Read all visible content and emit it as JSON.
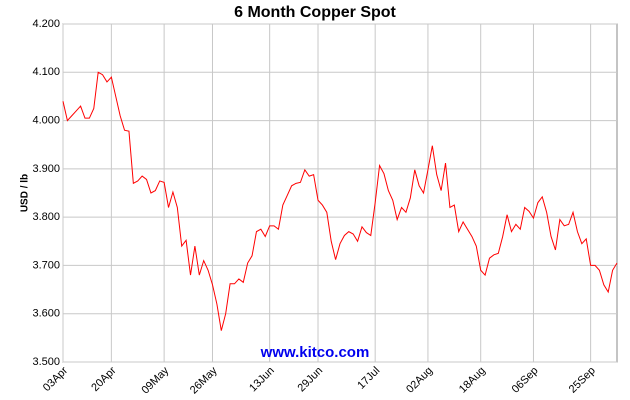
{
  "chart_data": {
    "type": "line",
    "title": "6 Month Copper Spot",
    "y_label": "USD / lb",
    "watermark": "www.kitco.com",
    "categories": [
      "03Apr",
      null,
      null,
      null,
      null,
      null,
      null,
      null,
      null,
      null,
      null,
      "20Apr",
      null,
      null,
      null,
      null,
      null,
      null,
      null,
      null,
      null,
      null,
      null,
      "09May",
      null,
      null,
      null,
      null,
      null,
      null,
      null,
      null,
      null,
      null,
      "26May",
      null,
      null,
      null,
      null,
      null,
      null,
      null,
      null,
      null,
      null,
      null,
      null,
      "13Jun",
      null,
      null,
      null,
      null,
      null,
      null,
      null,
      null,
      null,
      null,
      "29Jun",
      null,
      null,
      null,
      null,
      null,
      null,
      null,
      null,
      null,
      null,
      null,
      null,
      "17Jul",
      null,
      null,
      null,
      null,
      null,
      null,
      null,
      null,
      null,
      null,
      null,
      "02Aug",
      null,
      null,
      null,
      null,
      null,
      null,
      null,
      null,
      null,
      null,
      null,
      "18Aug",
      null,
      null,
      null,
      null,
      null,
      null,
      null,
      null,
      null,
      null,
      null,
      "06Sep",
      null,
      null,
      null,
      null,
      null,
      null,
      null,
      null,
      null,
      null,
      null,
      null,
      "25Sep",
      null,
      null,
      null,
      null,
      null,
      null
    ],
    "series": [
      {
        "name": "Copper",
        "color": "#ff0000",
        "values": [
          4.04,
          4.0,
          4.01,
          4.02,
          4.03,
          4.005,
          4.005,
          4.025,
          4.1,
          4.095,
          4.08,
          4.09,
          4.05,
          4.01,
          3.98,
          3.978,
          3.87,
          3.875,
          3.885,
          3.878,
          3.85,
          3.855,
          3.875,
          3.872,
          3.82,
          3.852,
          3.82,
          3.74,
          3.752,
          3.68,
          3.74,
          3.68,
          3.71,
          3.69,
          3.66,
          3.62,
          3.565,
          3.6,
          3.662,
          3.662,
          3.672,
          3.665,
          3.705,
          3.72,
          3.77,
          3.775,
          3.76,
          3.782,
          3.782,
          3.775,
          3.825,
          3.845,
          3.865,
          3.87,
          3.872,
          3.898,
          3.885,
          3.888,
          3.835,
          3.825,
          3.81,
          3.75,
          3.712,
          3.745,
          3.762,
          3.77,
          3.765,
          3.75,
          3.78,
          3.768,
          3.762,
          3.83,
          3.907,
          3.89,
          3.855,
          3.835,
          3.795,
          3.82,
          3.81,
          3.84,
          3.898,
          3.865,
          3.85,
          3.898,
          3.948,
          3.888,
          3.855,
          3.912,
          3.82,
          3.825,
          3.77,
          3.79,
          3.775,
          3.76,
          3.74,
          3.69,
          3.68,
          3.715,
          3.722,
          3.725,
          3.76,
          3.805,
          3.77,
          3.785,
          3.775,
          3.82,
          3.812,
          3.798,
          3.83,
          3.842,
          3.81,
          3.76,
          3.732,
          3.795,
          3.782,
          3.785,
          3.81,
          3.77,
          3.745,
          3.755,
          3.7,
          3.7,
          3.69,
          3.66,
          3.645,
          3.69,
          3.705
        ]
      }
    ],
    "ylim": [
      3.5,
      4.2
    ],
    "yticks": [
      {
        "value": 3.5,
        "label": "3.500"
      },
      {
        "value": 3.6,
        "label": "3.600"
      },
      {
        "value": 3.7,
        "label": "3.700"
      },
      {
        "value": 3.8,
        "label": "3.800"
      },
      {
        "value": 3.9,
        "label": "3.900"
      },
      {
        "value": 4.0,
        "label": "4.000"
      },
      {
        "value": 4.1,
        "label": "4.100"
      },
      {
        "value": 4.2,
        "label": "4.200"
      }
    ],
    "grid": true
  }
}
